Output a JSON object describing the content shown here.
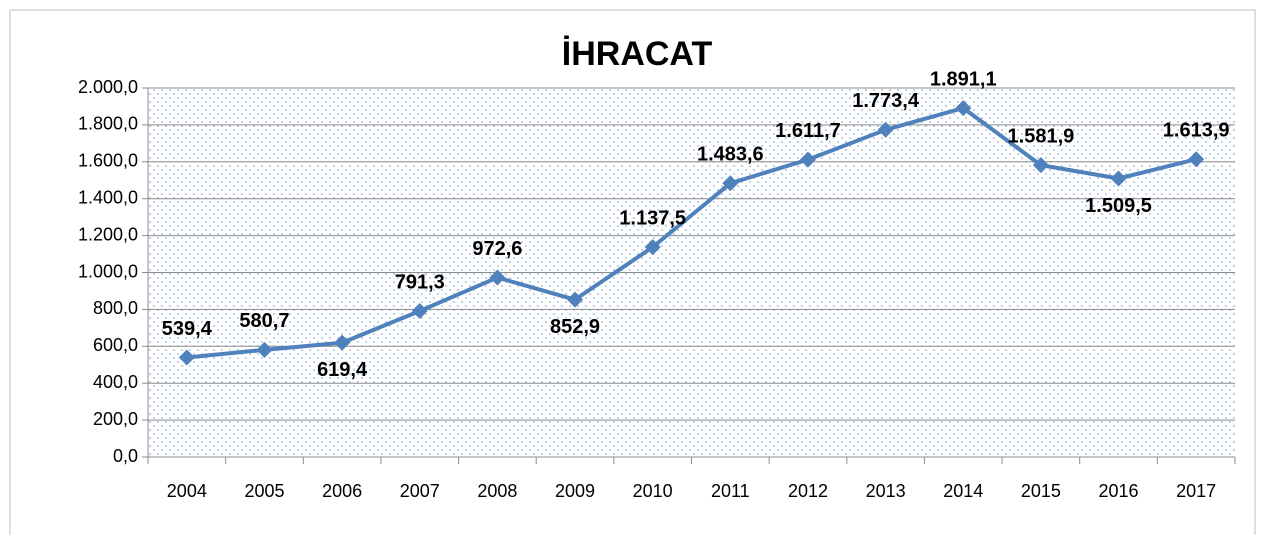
{
  "chart_data": {
    "type": "line",
    "title": "İHRACAT",
    "categories": [
      "2004",
      "2005",
      "2006",
      "2007",
      "2008",
      "2009",
      "2010",
      "2011",
      "2012",
      "2013",
      "2014",
      "2015",
      "2016",
      "2017"
    ],
    "series": [
      {
        "name": "İHRACAT",
        "color": "#4f81bd",
        "values": [
          539.4,
          580.7,
          619.4,
          791.3,
          972.6,
          852.9,
          1137.5,
          1483.6,
          1611.7,
          1773.4,
          1891.1,
          1581.9,
          1509.5,
          1613.9
        ],
        "value_labels": [
          "539,4",
          "580,7",
          "619,4",
          "791,3",
          "972,6",
          "852,9",
          "1.137,5",
          "1.483,6",
          "1.611,7",
          "1.773,4",
          "1.891,1",
          "1.581,9",
          "1.509,5",
          "1.613,9"
        ]
      }
    ],
    "ylim": [
      0,
      2000
    ],
    "yticks": [
      {
        "value": 0,
        "label": "0,0"
      },
      {
        "value": 200,
        "label": "200,0"
      },
      {
        "value": 400,
        "label": "400,0"
      },
      {
        "value": 600,
        "label": "600,0"
      },
      {
        "value": 800,
        "label": "800,0"
      },
      {
        "value": 1000,
        "label": "1.000,0"
      },
      {
        "value": 1200,
        "label": "1.200,0"
      },
      {
        "value": 1400,
        "label": "1.400,0"
      },
      {
        "value": 1600,
        "label": "1.600,0"
      },
      {
        "value": 1800,
        "label": "1.800,0"
      },
      {
        "value": 2000,
        "label": "2.000,0"
      }
    ],
    "grid": true
  }
}
